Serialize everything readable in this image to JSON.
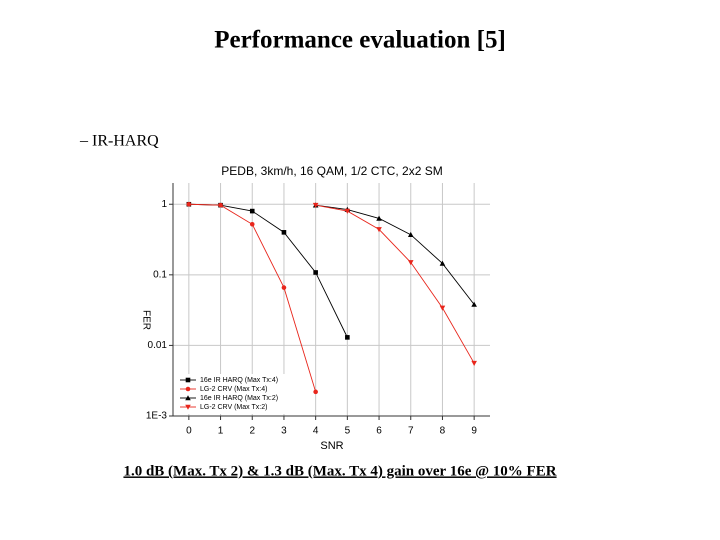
{
  "slide": {
    "title": "Performance evaluation [5]",
    "bullet": "– IR-HARQ",
    "footer": "1.0 dB (Max. Tx 2) & 1.3 dB (Max. Tx 4) gain over 16e @ 10% FER"
  },
  "chart_data": {
    "type": "line",
    "title": "PEDB, 3km/h, 16 QAM, 1/2 CTC, 2x2 SM",
    "x_label": "SNR",
    "y_label": "FER",
    "x": [
      0,
      1,
      2,
      3,
      4,
      5,
      6,
      7,
      8,
      9
    ],
    "series": [
      {
        "name": "16e IR HARQ (Max Tx:4)",
        "color": "#000000",
        "marker": "square",
        "values": [
          1,
          0.97,
          0.8,
          0.4,
          0.108,
          0.013,
          null,
          null,
          null,
          null
        ]
      },
      {
        "name": "LG-2 CRV (Max Tx:4)",
        "color": "#e8261c",
        "marker": "circle",
        "values": [
          1,
          0.97,
          0.52,
          0.066,
          0.0022,
          null,
          null,
          null,
          null,
          null
        ]
      },
      {
        "name": "16e IR HARQ (Max Tx:2)",
        "color": "#000000",
        "marker": "triangle-up",
        "values": [
          null,
          null,
          null,
          null,
          0.97,
          0.84,
          0.63,
          0.37,
          0.145,
          0.038
        ]
      },
      {
        "name": "LG-2 CRV (Max Tx:2)",
        "color": "#e8261c",
        "marker": "triangle-down",
        "values": [
          null,
          null,
          null,
          null,
          0.97,
          0.8,
          0.44,
          0.15,
          0.034,
          0.0056
        ]
      }
    ],
    "xlim": [
      -0.5,
      9.5
    ],
    "ylim": [
      0.001,
      2
    ],
    "xticks": [
      0,
      1,
      2,
      3,
      4,
      5,
      6,
      7,
      8,
      9
    ],
    "yticks": [
      {
        "value": 0.001,
        "label": "1E-3"
      },
      0.01,
      0.1,
      1
    ],
    "log_y": true,
    "grid": true,
    "legend": "lower-left"
  }
}
